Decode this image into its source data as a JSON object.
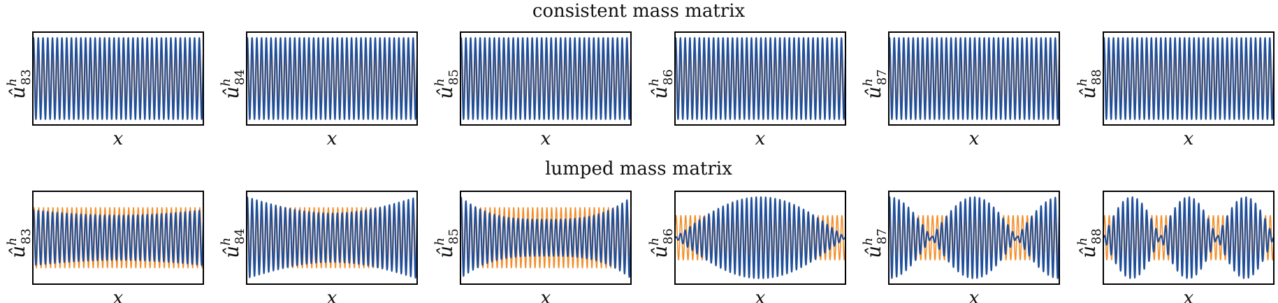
{
  "chart_data": {
    "type": "line",
    "rows": [
      {
        "title": "consistent mass matrix",
        "panels": [
          {
            "mode": "83",
            "ylabel_base": "û",
            "ylabel_sup": "h",
            "ylabel_sub": "83",
            "xlabel": "x",
            "series": [
              {
                "color": "#f28e2b",
                "envelope": "constant",
                "amplitude": 0.68
              },
              {
                "color": "#1f4e9a",
                "envelope": "constant",
                "amplitude": 0.92
              }
            ]
          },
          {
            "mode": "84",
            "ylabel_base": "û",
            "ylabel_sup": "h",
            "ylabel_sub": "84",
            "xlabel": "x",
            "series": [
              {
                "color": "#f28e2b",
                "envelope": "constant",
                "amplitude": 0.68
              },
              {
                "color": "#1f4e9a",
                "envelope": "constant",
                "amplitude": 0.92
              }
            ]
          },
          {
            "mode": "85",
            "ylabel_base": "û",
            "ylabel_sup": "h",
            "ylabel_sub": "85",
            "xlabel": "x",
            "series": [
              {
                "color": "#f28e2b",
                "envelope": "constant",
                "amplitude": 0.68
              },
              {
                "color": "#1f4e9a",
                "envelope": "constant",
                "amplitude": 0.92
              }
            ]
          },
          {
            "mode": "86",
            "ylabel_base": "û",
            "ylabel_sup": "h",
            "ylabel_sub": "86",
            "xlabel": "x",
            "series": [
              {
                "color": "#f28e2b",
                "envelope": "constant",
                "amplitude": 0.68
              },
              {
                "color": "#1f4e9a",
                "envelope": "constant",
                "amplitude": 0.92
              }
            ]
          },
          {
            "mode": "87",
            "ylabel_base": "û",
            "ylabel_sup": "h",
            "ylabel_sub": "87",
            "xlabel": "x",
            "series": [
              {
                "color": "#f28e2b",
                "envelope": "constant",
                "amplitude": 0.68
              },
              {
                "color": "#1f4e9a",
                "envelope": "constant",
                "amplitude": 0.92
              }
            ]
          },
          {
            "mode": "88",
            "ylabel_base": "û",
            "ylabel_sup": "h",
            "ylabel_sub": "88",
            "xlabel": "x",
            "series": [
              {
                "color": "#f28e2b",
                "envelope": "constant",
                "amplitude": 0.68
              },
              {
                "color": "#1f4e9a",
                "envelope": "constant",
                "amplitude": 0.92
              }
            ]
          }
        ]
      },
      {
        "title": "lumped mass matrix",
        "panels": [
          {
            "mode": "83",
            "ylabel_base": "û",
            "ylabel_sup": "h",
            "ylabel_sub": "83",
            "xlabel": "x",
            "series": [
              {
                "color": "#f28e2b",
                "envelope": "constant",
                "amplitude": 0.68
              },
              {
                "color": "#1f4e9a",
                "envelope": "beat",
                "beats": 0.5,
                "amplitude": 0.92
              }
            ]
          },
          {
            "mode": "84",
            "ylabel_base": "û",
            "ylabel_sup": "h",
            "ylabel_sub": "84",
            "xlabel": "x",
            "series": [
              {
                "color": "#f28e2b",
                "envelope": "constant",
                "amplitude": 0.68
              },
              {
                "color": "#1f4e9a",
                "envelope": "beat",
                "beats": 1,
                "amplitude": 0.92
              }
            ]
          },
          {
            "mode": "85",
            "ylabel_base": "û",
            "ylabel_sup": "h",
            "ylabel_sub": "85",
            "xlabel": "x",
            "series": [
              {
                "color": "#f28e2b",
                "envelope": "constant",
                "amplitude": 0.68
              },
              {
                "color": "#1f4e9a",
                "envelope": "beat",
                "beats": 1.5,
                "amplitude": 0.92
              }
            ]
          },
          {
            "mode": "86",
            "ylabel_base": "û",
            "ylabel_sup": "h",
            "ylabel_sub": "86",
            "xlabel": "x",
            "series": [
              {
                "color": "#f28e2b",
                "envelope": "constant",
                "amplitude": 0.5
              },
              {
                "color": "#1f4e9a",
                "envelope": "beat",
                "beats": 1,
                "amplitude": 0.92
              }
            ]
          },
          {
            "mode": "87",
            "ylabel_base": "û",
            "ylabel_sup": "h",
            "ylabel_sub": "87",
            "xlabel": "x",
            "series": [
              {
                "color": "#f28e2b",
                "envelope": "constant",
                "amplitude": 0.5
              },
              {
                "color": "#1f4e9a",
                "envelope": "beat",
                "beats": 2,
                "amplitude": 0.92
              }
            ]
          },
          {
            "mode": "88",
            "ylabel_base": "û",
            "ylabel_sup": "h",
            "ylabel_sub": "88",
            "xlabel": "x",
            "series": [
              {
                "color": "#f28e2b",
                "envelope": "constant",
                "amplitude": 0.5
              },
              {
                "color": "#1f4e9a",
                "envelope": "beat",
                "beats": 3,
                "amplitude": 0.92
              }
            ]
          }
        ]
      }
    ],
    "xlim": [
      0,
      1
    ],
    "ylim": [
      -1,
      1
    ],
    "grid": false,
    "legend": "none"
  }
}
